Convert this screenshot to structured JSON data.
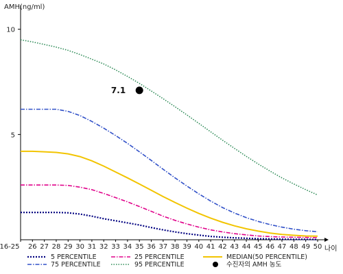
{
  "chart_data": {
    "type": "line",
    "ylabel": "AMH(ng/ml)",
    "xlabel": "나이",
    "ylim": [
      0,
      11
    ],
    "yticks": [
      5,
      10
    ],
    "ytick_labels": [
      "5",
      "10"
    ],
    "x_categories": [
      "16-25",
      "26",
      "27",
      "28",
      "29",
      "30",
      "31",
      "32",
      "33",
      "34",
      "35",
      "36",
      "37",
      "38",
      "39",
      "40",
      "41",
      "42",
      "43",
      "44",
      "45",
      "46",
      "47",
      "48",
      "49",
      "50"
    ],
    "x_values": [
      25,
      26,
      27,
      28,
      29,
      30,
      31,
      32,
      33,
      34,
      35,
      36,
      37,
      38,
      39,
      40,
      41,
      42,
      43,
      44,
      45,
      46,
      47,
      48,
      49,
      50
    ],
    "series": [
      {
        "name": "5 PERCENTILE",
        "color": "#000080",
        "dash": "2,2",
        "width": 2.2,
        "values": [
          1.3,
          1.3,
          1.3,
          1.3,
          1.28,
          1.22,
          1.12,
          1.0,
          0.9,
          0.8,
          0.7,
          0.58,
          0.47,
          0.37,
          0.29,
          0.22,
          0.16,
          0.12,
          0.09,
          0.07,
          0.05,
          0.04,
          0.03,
          0.02,
          0.02,
          0.01
        ]
      },
      {
        "name": "25 PERCENTILE",
        "color": "#e0008a",
        "dash": "6,2,1.5,2",
        "width": 1.6,
        "values": [
          2.6,
          2.6,
          2.6,
          2.6,
          2.58,
          2.5,
          2.38,
          2.2,
          2.0,
          1.8,
          1.58,
          1.35,
          1.12,
          0.92,
          0.75,
          0.6,
          0.47,
          0.37,
          0.29,
          0.23,
          0.18,
          0.15,
          0.13,
          0.12,
          0.11,
          0.1
        ]
      },
      {
        "name": "MEDIAN(50 PERCENTILE)",
        "color": "#f2c400",
        "dash": "",
        "width": 2,
        "values": [
          4.2,
          4.2,
          4.18,
          4.15,
          4.08,
          3.95,
          3.75,
          3.5,
          3.22,
          2.94,
          2.65,
          2.35,
          2.05,
          1.77,
          1.5,
          1.25,
          1.03,
          0.83,
          0.66,
          0.52,
          0.41,
          0.32,
          0.25,
          0.21,
          0.18,
          0.17
        ]
      },
      {
        "name": "75 PERCENTILE",
        "color": "#3050c8",
        "dash": "6,2,1.5,2",
        "width": 1.6,
        "values": [
          6.2,
          6.2,
          6.2,
          6.2,
          6.1,
          5.9,
          5.62,
          5.3,
          4.95,
          4.58,
          4.18,
          3.77,
          3.35,
          2.94,
          2.55,
          2.18,
          1.84,
          1.53,
          1.27,
          1.05,
          0.87,
          0.72,
          0.6,
          0.5,
          0.43,
          0.38
        ]
      },
      {
        "name": "95 PERCENTILE",
        "color": "#2e8b57",
        "dash": "1.5,2",
        "width": 1.6,
        "values": [
          9.5,
          9.4,
          9.28,
          9.15,
          9.0,
          8.8,
          8.58,
          8.35,
          8.07,
          7.76,
          7.43,
          7.07,
          6.7,
          6.32,
          5.93,
          5.53,
          5.13,
          4.73,
          4.34,
          3.96,
          3.6,
          3.26,
          2.94,
          2.65,
          2.38,
          2.13
        ]
      },
      {
        "name": "수진자의 AMH 농도",
        "marker": "point",
        "color": "#000000",
        "x": 35,
        "y": 7.1,
        "label": "7.1"
      }
    ],
    "legend_position": "bottom"
  }
}
